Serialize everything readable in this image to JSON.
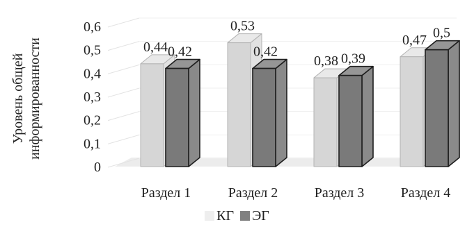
{
  "chart_data": {
    "type": "bar",
    "style": "3d-clustered-column",
    "categories": [
      "Раздел 1",
      "Раздел 2",
      "Раздел 3",
      "Раздел 4"
    ],
    "series": [
      {
        "name": "КГ",
        "values": [
          0.44,
          0.53,
          0.38,
          0.47
        ],
        "color": "#d9d9d9"
      },
      {
        "name": "ЭГ",
        "values": [
          0.42,
          0.42,
          0.39,
          0.5
        ],
        "color": "#808080"
      }
    ],
    "data_labels": [
      [
        "0,44",
        "0,53",
        "0,38",
        "0,47"
      ],
      [
        "0,42",
        "0,42",
        "0,39",
        "0,5"
      ]
    ],
    "ylabel": "Уровень общей информированности",
    "ylabel_lines": [
      "Уровень общей",
      "информированности"
    ],
    "yticks": [
      "0",
      "0,1",
      "0,2",
      "0,3",
      "0,4",
      "0,5",
      "0,6"
    ],
    "ylim": [
      0,
      0.6
    ],
    "grid": true,
    "legend_position": "bottom",
    "legend": [
      "КГ",
      "ЭГ"
    ]
  }
}
